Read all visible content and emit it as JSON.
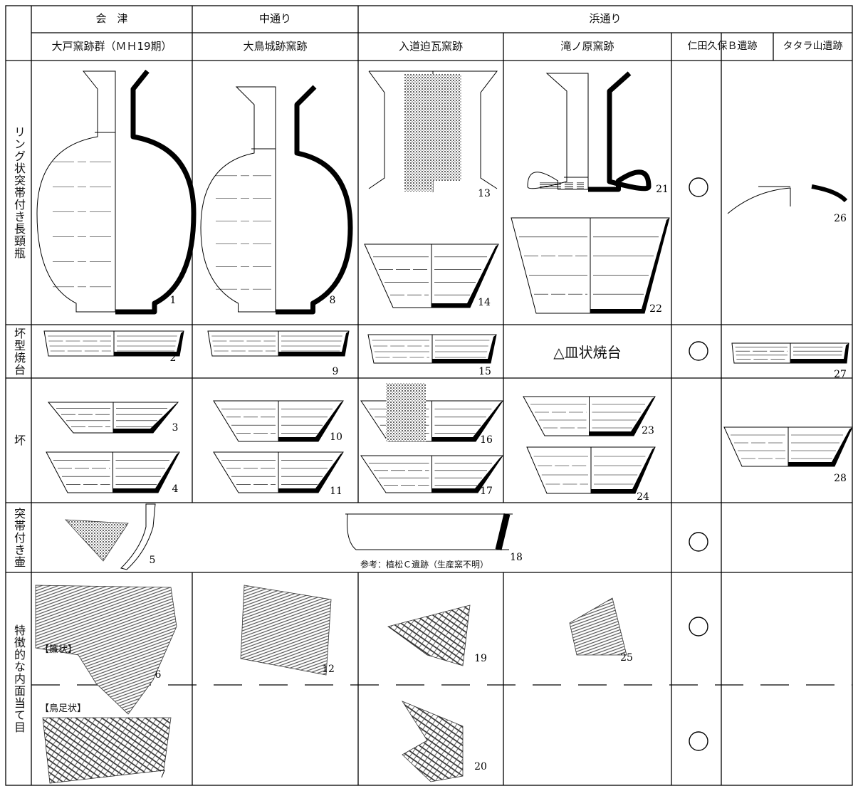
{
  "header": {
    "regions": [
      "会　津",
      "中通り",
      "浜通り"
    ],
    "sites": [
      "大戸窯跡群（ＭＨ19期）",
      "大鳥城跡窯跡",
      "入道迫瓦窯跡",
      "滝ノ原窯跡",
      "仁田久保Ｂ遺跡",
      "タタラ山遺跡"
    ]
  },
  "row_labels": [
    "リング状突帯付き長頸瓶",
    "坏型焼台",
    "坏",
    "突帯付き壷",
    "特徴的な内面当て目"
  ],
  "cells": {
    "sara_label": "△皿状焼台",
    "reference_note": "参考：植松Ｃ遺跡（生産窯不明）",
    "pattern_labels": [
      "【簾状】",
      "【鳥足状】"
    ]
  },
  "figure_numbers": [
    1,
    2,
    3,
    4,
    5,
    6,
    7,
    8,
    9,
    10,
    11,
    12,
    13,
    14,
    15,
    16,
    17,
    18,
    19,
    20,
    21,
    22,
    23,
    24,
    25,
    26,
    27,
    28
  ]
}
